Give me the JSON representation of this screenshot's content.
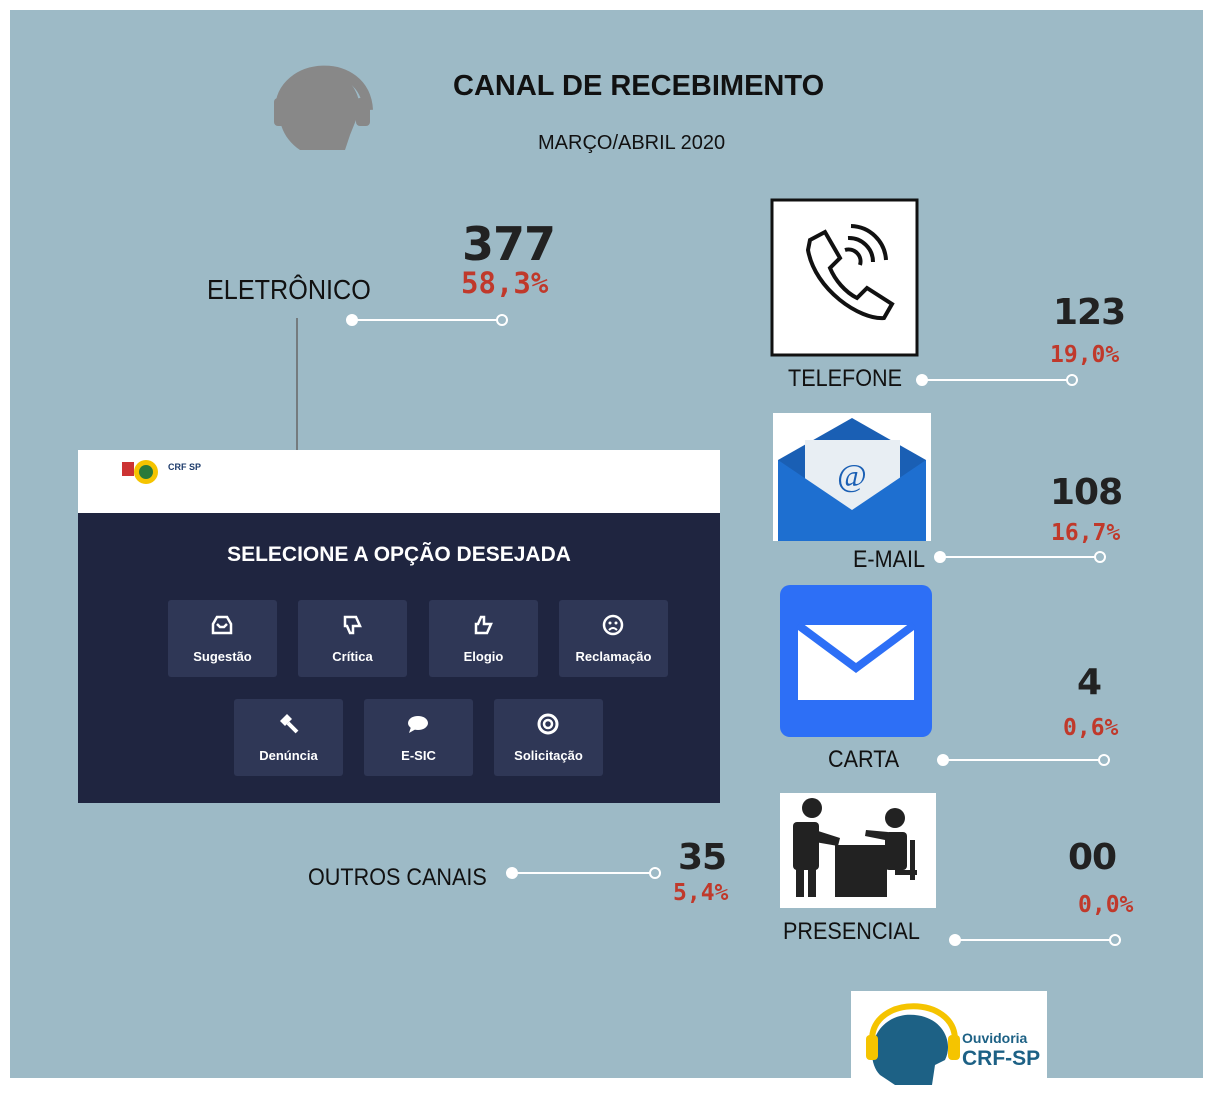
{
  "header": {
    "title": "CANAL DE RECEBIMENTO",
    "subtitle": "MARÇO/ABRIL 2020"
  },
  "channels": [
    {
      "label": "ELETRÔNICO",
      "count": "377",
      "percent": "58,3%"
    },
    {
      "label": "TELEFONE",
      "count": "123",
      "percent": "19,0%"
    },
    {
      "label": "E-MAIL",
      "count": "108",
      "percent": "16,7%"
    },
    {
      "label": "CARTA",
      "count": "4",
      "percent": "0,6%"
    },
    {
      "label": "PRESENCIAL",
      "count": "00",
      "percent": "0,0%"
    },
    {
      "label": "OUTROS CANAIS",
      "count": "35",
      "percent": "5,4%"
    }
  ],
  "portal": {
    "logo": "CRF SP",
    "heading": "SELECIONE A OPÇÃO DESEJADA",
    "options": [
      "Sugestão",
      "Crítica",
      "Elogio",
      "Reclamação",
      "Denúncia",
      "E-SIC",
      "Solicitação"
    ]
  },
  "footer_logo": {
    "line1": "Ouvidoria",
    "line2": "CRF-SP"
  }
}
